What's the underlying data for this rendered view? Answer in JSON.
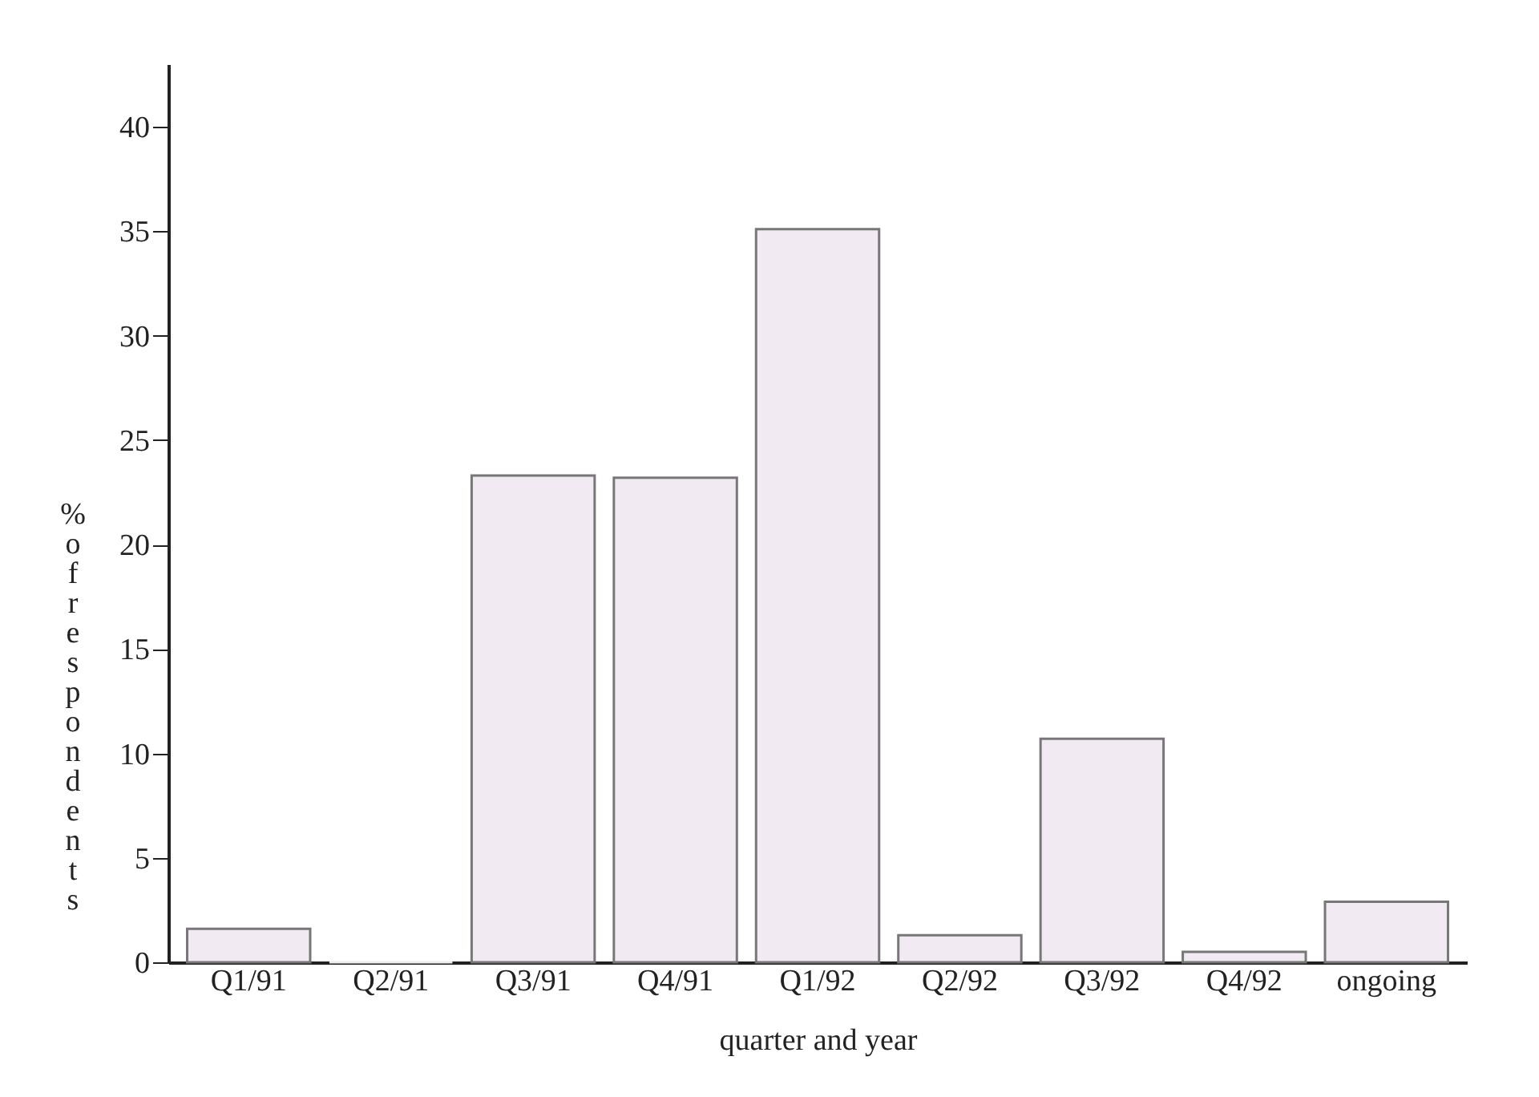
{
  "chart_data": {
    "type": "bar",
    "xlabel": "quarter and year",
    "ylabel": "% of respondents",
    "categories": [
      "Q1/91",
      "Q2/91",
      "Q3/91",
      "Q4/91",
      "Q1/92",
      "Q2/92",
      "Q3/92",
      "Q4/92",
      "ongoing"
    ],
    "values": [
      1.6,
      0,
      23.3,
      23.2,
      35.1,
      1.3,
      10.7,
      0.5,
      2.9
    ],
    "color": "#f1eaf3",
    "ylim": [
      0,
      43
    ],
    "yticks": [
      0,
      5,
      10,
      15,
      20,
      25,
      30,
      35,
      40
    ],
    "grid": false
  }
}
